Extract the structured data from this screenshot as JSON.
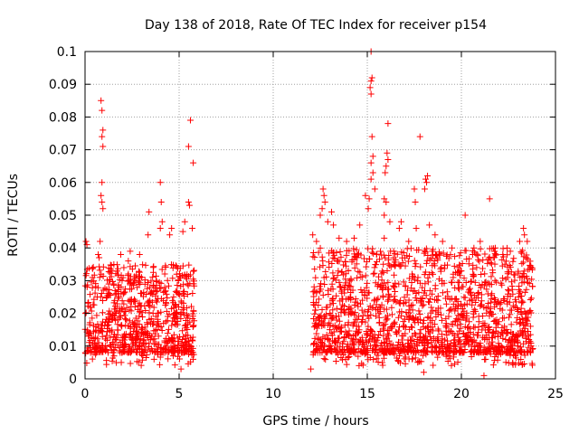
{
  "chart_data": {
    "type": "scatter",
    "title": "Day 138 of 2018, Rate Of TEC Index for receiver p154",
    "xlabel": "GPS time / hours",
    "ylabel": "ROTI / TECUs",
    "xlim": [
      0,
      25
    ],
    "ylim": [
      0,
      0.1
    ],
    "xticks": [
      0,
      5,
      10,
      15,
      20,
      25
    ],
    "xtick_labels": [
      "0",
      "5",
      "10",
      "15",
      "20",
      "25"
    ],
    "yticks": [
      0,
      0.01,
      0.02,
      0.03,
      0.04,
      0.05,
      0.06,
      0.07,
      0.08,
      0.09,
      0.1
    ],
    "ytick_labels": [
      "0",
      "0.01",
      "0.02",
      "0.03",
      "0.04",
      "0.05",
      "0.06",
      "0.07",
      "0.08",
      "0.09",
      "0.1"
    ],
    "grid": true,
    "marker": "+",
    "color": "#ff0000",
    "segments": [
      {
        "x_start": 0.0,
        "x_end": 5.8,
        "typical_min": 0.004,
        "typical_max": 0.035
      },
      {
        "x_start": 12.1,
        "x_end": 23.8,
        "typical_min": 0.004,
        "typical_max": 0.04
      }
    ],
    "notable_points": [
      {
        "x": 0.05,
        "y": 0.042
      },
      {
        "x": 0.1,
        "y": 0.041
      },
      {
        "x": 0.85,
        "y": 0.085
      },
      {
        "x": 0.9,
        "y": 0.082
      },
      {
        "x": 0.95,
        "y": 0.076
      },
      {
        "x": 0.9,
        "y": 0.074
      },
      {
        "x": 0.95,
        "y": 0.071
      },
      {
        "x": 0.9,
        "y": 0.06
      },
      {
        "x": 0.85,
        "y": 0.056
      },
      {
        "x": 0.9,
        "y": 0.054
      },
      {
        "x": 0.95,
        "y": 0.052
      },
      {
        "x": 0.8,
        "y": 0.042
      },
      {
        "x": 0.7,
        "y": 0.038
      },
      {
        "x": 0.75,
        "y": 0.037
      },
      {
        "x": 3.4,
        "y": 0.051
      },
      {
        "x": 3.35,
        "y": 0.044
      },
      {
        "x": 2.4,
        "y": 0.039
      },
      {
        "x": 2.3,
        "y": 0.036
      },
      {
        "x": 1.9,
        "y": 0.038
      },
      {
        "x": 2.9,
        "y": 0.038
      },
      {
        "x": 4.0,
        "y": 0.06
      },
      {
        "x": 4.05,
        "y": 0.054
      },
      {
        "x": 4.1,
        "y": 0.048
      },
      {
        "x": 4.0,
        "y": 0.046
      },
      {
        "x": 4.5,
        "y": 0.044
      },
      {
        "x": 4.6,
        "y": 0.046
      },
      {
        "x": 5.6,
        "y": 0.079
      },
      {
        "x": 5.5,
        "y": 0.071
      },
      {
        "x": 5.75,
        "y": 0.066
      },
      {
        "x": 5.5,
        "y": 0.054
      },
      {
        "x": 5.55,
        "y": 0.053
      },
      {
        "x": 5.3,
        "y": 0.048
      },
      {
        "x": 5.2,
        "y": 0.045
      },
      {
        "x": 5.7,
        "y": 0.046
      },
      {
        "x": 5.1,
        "y": 0.003
      },
      {
        "x": 12.1,
        "y": 0.044
      },
      {
        "x": 12.3,
        "y": 0.042
      },
      {
        "x": 12.65,
        "y": 0.058
      },
      {
        "x": 12.7,
        "y": 0.056
      },
      {
        "x": 12.75,
        "y": 0.054
      },
      {
        "x": 12.6,
        "y": 0.052
      },
      {
        "x": 13.1,
        "y": 0.051
      },
      {
        "x": 13.2,
        "y": 0.047
      },
      {
        "x": 12.5,
        "y": 0.05
      },
      {
        "x": 12.9,
        "y": 0.048
      },
      {
        "x": 13.5,
        "y": 0.043
      },
      {
        "x": 13.9,
        "y": 0.042
      },
      {
        "x": 14.3,
        "y": 0.043
      },
      {
        "x": 14.6,
        "y": 0.047
      },
      {
        "x": 14.9,
        "y": 0.056
      },
      {
        "x": 15.1,
        "y": 0.055
      },
      {
        "x": 15.05,
        "y": 0.052
      },
      {
        "x": 15.2,
        "y": 0.1
      },
      {
        "x": 15.25,
        "y": 0.092
      },
      {
        "x": 15.2,
        "y": 0.091
      },
      {
        "x": 15.15,
        "y": 0.089
      },
      {
        "x": 15.2,
        "y": 0.087
      },
      {
        "x": 15.25,
        "y": 0.074
      },
      {
        "x": 15.3,
        "y": 0.068
      },
      {
        "x": 15.2,
        "y": 0.066
      },
      {
        "x": 15.3,
        "y": 0.063
      },
      {
        "x": 15.2,
        "y": 0.061
      },
      {
        "x": 15.4,
        "y": 0.058
      },
      {
        "x": 16.1,
        "y": 0.078
      },
      {
        "x": 16.05,
        "y": 0.069
      },
      {
        "x": 16.1,
        "y": 0.067
      },
      {
        "x": 16.0,
        "y": 0.065
      },
      {
        "x": 15.95,
        "y": 0.063
      },
      {
        "x": 15.9,
        "y": 0.055
      },
      {
        "x": 16.0,
        "y": 0.054
      },
      {
        "x": 15.9,
        "y": 0.05
      },
      {
        "x": 16.2,
        "y": 0.048
      },
      {
        "x": 15.9,
        "y": 0.043
      },
      {
        "x": 15.85,
        "y": 0.035
      },
      {
        "x": 16.4,
        "y": 0.039
      },
      {
        "x": 16.7,
        "y": 0.046
      },
      {
        "x": 16.8,
        "y": 0.048
      },
      {
        "x": 17.2,
        "y": 0.042
      },
      {
        "x": 17.8,
        "y": 0.074
      },
      {
        "x": 17.5,
        "y": 0.058
      },
      {
        "x": 17.55,
        "y": 0.054
      },
      {
        "x": 17.6,
        "y": 0.046
      },
      {
        "x": 18.1,
        "y": 0.061
      },
      {
        "x": 18.2,
        "y": 0.062
      },
      {
        "x": 18.15,
        "y": 0.06
      },
      {
        "x": 18.05,
        "y": 0.058
      },
      {
        "x": 18.3,
        "y": 0.047
      },
      {
        "x": 18.6,
        "y": 0.044
      },
      {
        "x": 19.0,
        "y": 0.042
      },
      {
        "x": 19.5,
        "y": 0.04
      },
      {
        "x": 20.2,
        "y": 0.05
      },
      {
        "x": 20.6,
        "y": 0.038
      },
      {
        "x": 21.0,
        "y": 0.042
      },
      {
        "x": 21.5,
        "y": 0.055
      },
      {
        "x": 21.8,
        "y": 0.04
      },
      {
        "x": 22.2,
        "y": 0.038
      },
      {
        "x": 22.6,
        "y": 0.039
      },
      {
        "x": 23.1,
        "y": 0.042
      },
      {
        "x": 23.3,
        "y": 0.046
      },
      {
        "x": 23.35,
        "y": 0.044
      },
      {
        "x": 23.5,
        "y": 0.042
      },
      {
        "x": 23.45,
        "y": 0.037
      },
      {
        "x": 21.2,
        "y": 0.001
      },
      {
        "x": 12.0,
        "y": 0.003
      },
      {
        "x": 18.0,
        "y": 0.002
      }
    ]
  }
}
